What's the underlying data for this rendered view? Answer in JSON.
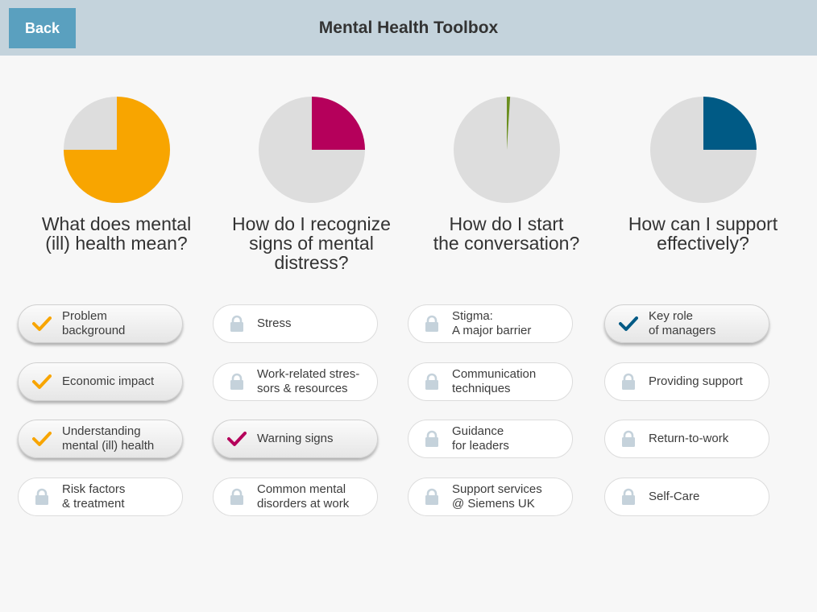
{
  "header": {
    "back_label": "Back",
    "title": "Mental Health Toolbox"
  },
  "colors": {
    "track": "#dddddd",
    "lock": "#c5d2db"
  },
  "sections": [
    {
      "title": "What does mental\n(ill) health mean?",
      "progress": 0.75,
      "color": "#f8a500",
      "lessons": [
        {
          "label": "Problem\nbackground",
          "status": "completed",
          "icon": "check-icon"
        },
        {
          "label": "Economic impact",
          "status": "completed",
          "icon": "check-icon"
        },
        {
          "label": "Understanding\nmental (ill) health",
          "status": "completed",
          "icon": "check-icon"
        },
        {
          "label": "Risk factors\n& treatment",
          "status": "locked",
          "icon": "lock-icon"
        }
      ]
    },
    {
      "title": "How do I recognize\nsigns of mental\ndistress?",
      "progress": 0.25,
      "color": "#b5005b",
      "lessons": [
        {
          "label": "Stress",
          "status": "locked",
          "icon": "lock-icon"
        },
        {
          "label": "Work-related stres-\nsors & resources",
          "status": "locked",
          "icon": "lock-icon"
        },
        {
          "label": "Warning signs",
          "status": "completed",
          "icon": "check-icon"
        },
        {
          "label": "Common mental\ndisorders at work",
          "status": "locked",
          "icon": "lock-icon"
        }
      ]
    },
    {
      "title": "How do I start\nthe conversation?",
      "progress": 0.01,
      "color": "#6b8f1f",
      "lessons": [
        {
          "label": "Stigma:\nA major barrier",
          "status": "locked",
          "icon": "lock-icon"
        },
        {
          "label": "Communication\ntechniques",
          "status": "locked",
          "icon": "lock-icon"
        },
        {
          "label": "Guidance\nfor leaders",
          "status": "locked",
          "icon": "lock-icon"
        },
        {
          "label": "Support services\n@ Siemens UK",
          "status": "locked",
          "icon": "lock-icon"
        }
      ]
    },
    {
      "title": "How can I support\neffectively?",
      "progress": 0.25,
      "color": "#005a85",
      "lessons": [
        {
          "label": "Key role\nof managers",
          "status": "completed",
          "icon": "check-icon"
        },
        {
          "label": "Providing support",
          "status": "locked",
          "icon": "lock-icon"
        },
        {
          "label": "Return-to-work",
          "status": "locked",
          "icon": "lock-icon"
        },
        {
          "label": "Self-Care",
          "status": "locked",
          "icon": "lock-icon"
        }
      ]
    }
  ]
}
